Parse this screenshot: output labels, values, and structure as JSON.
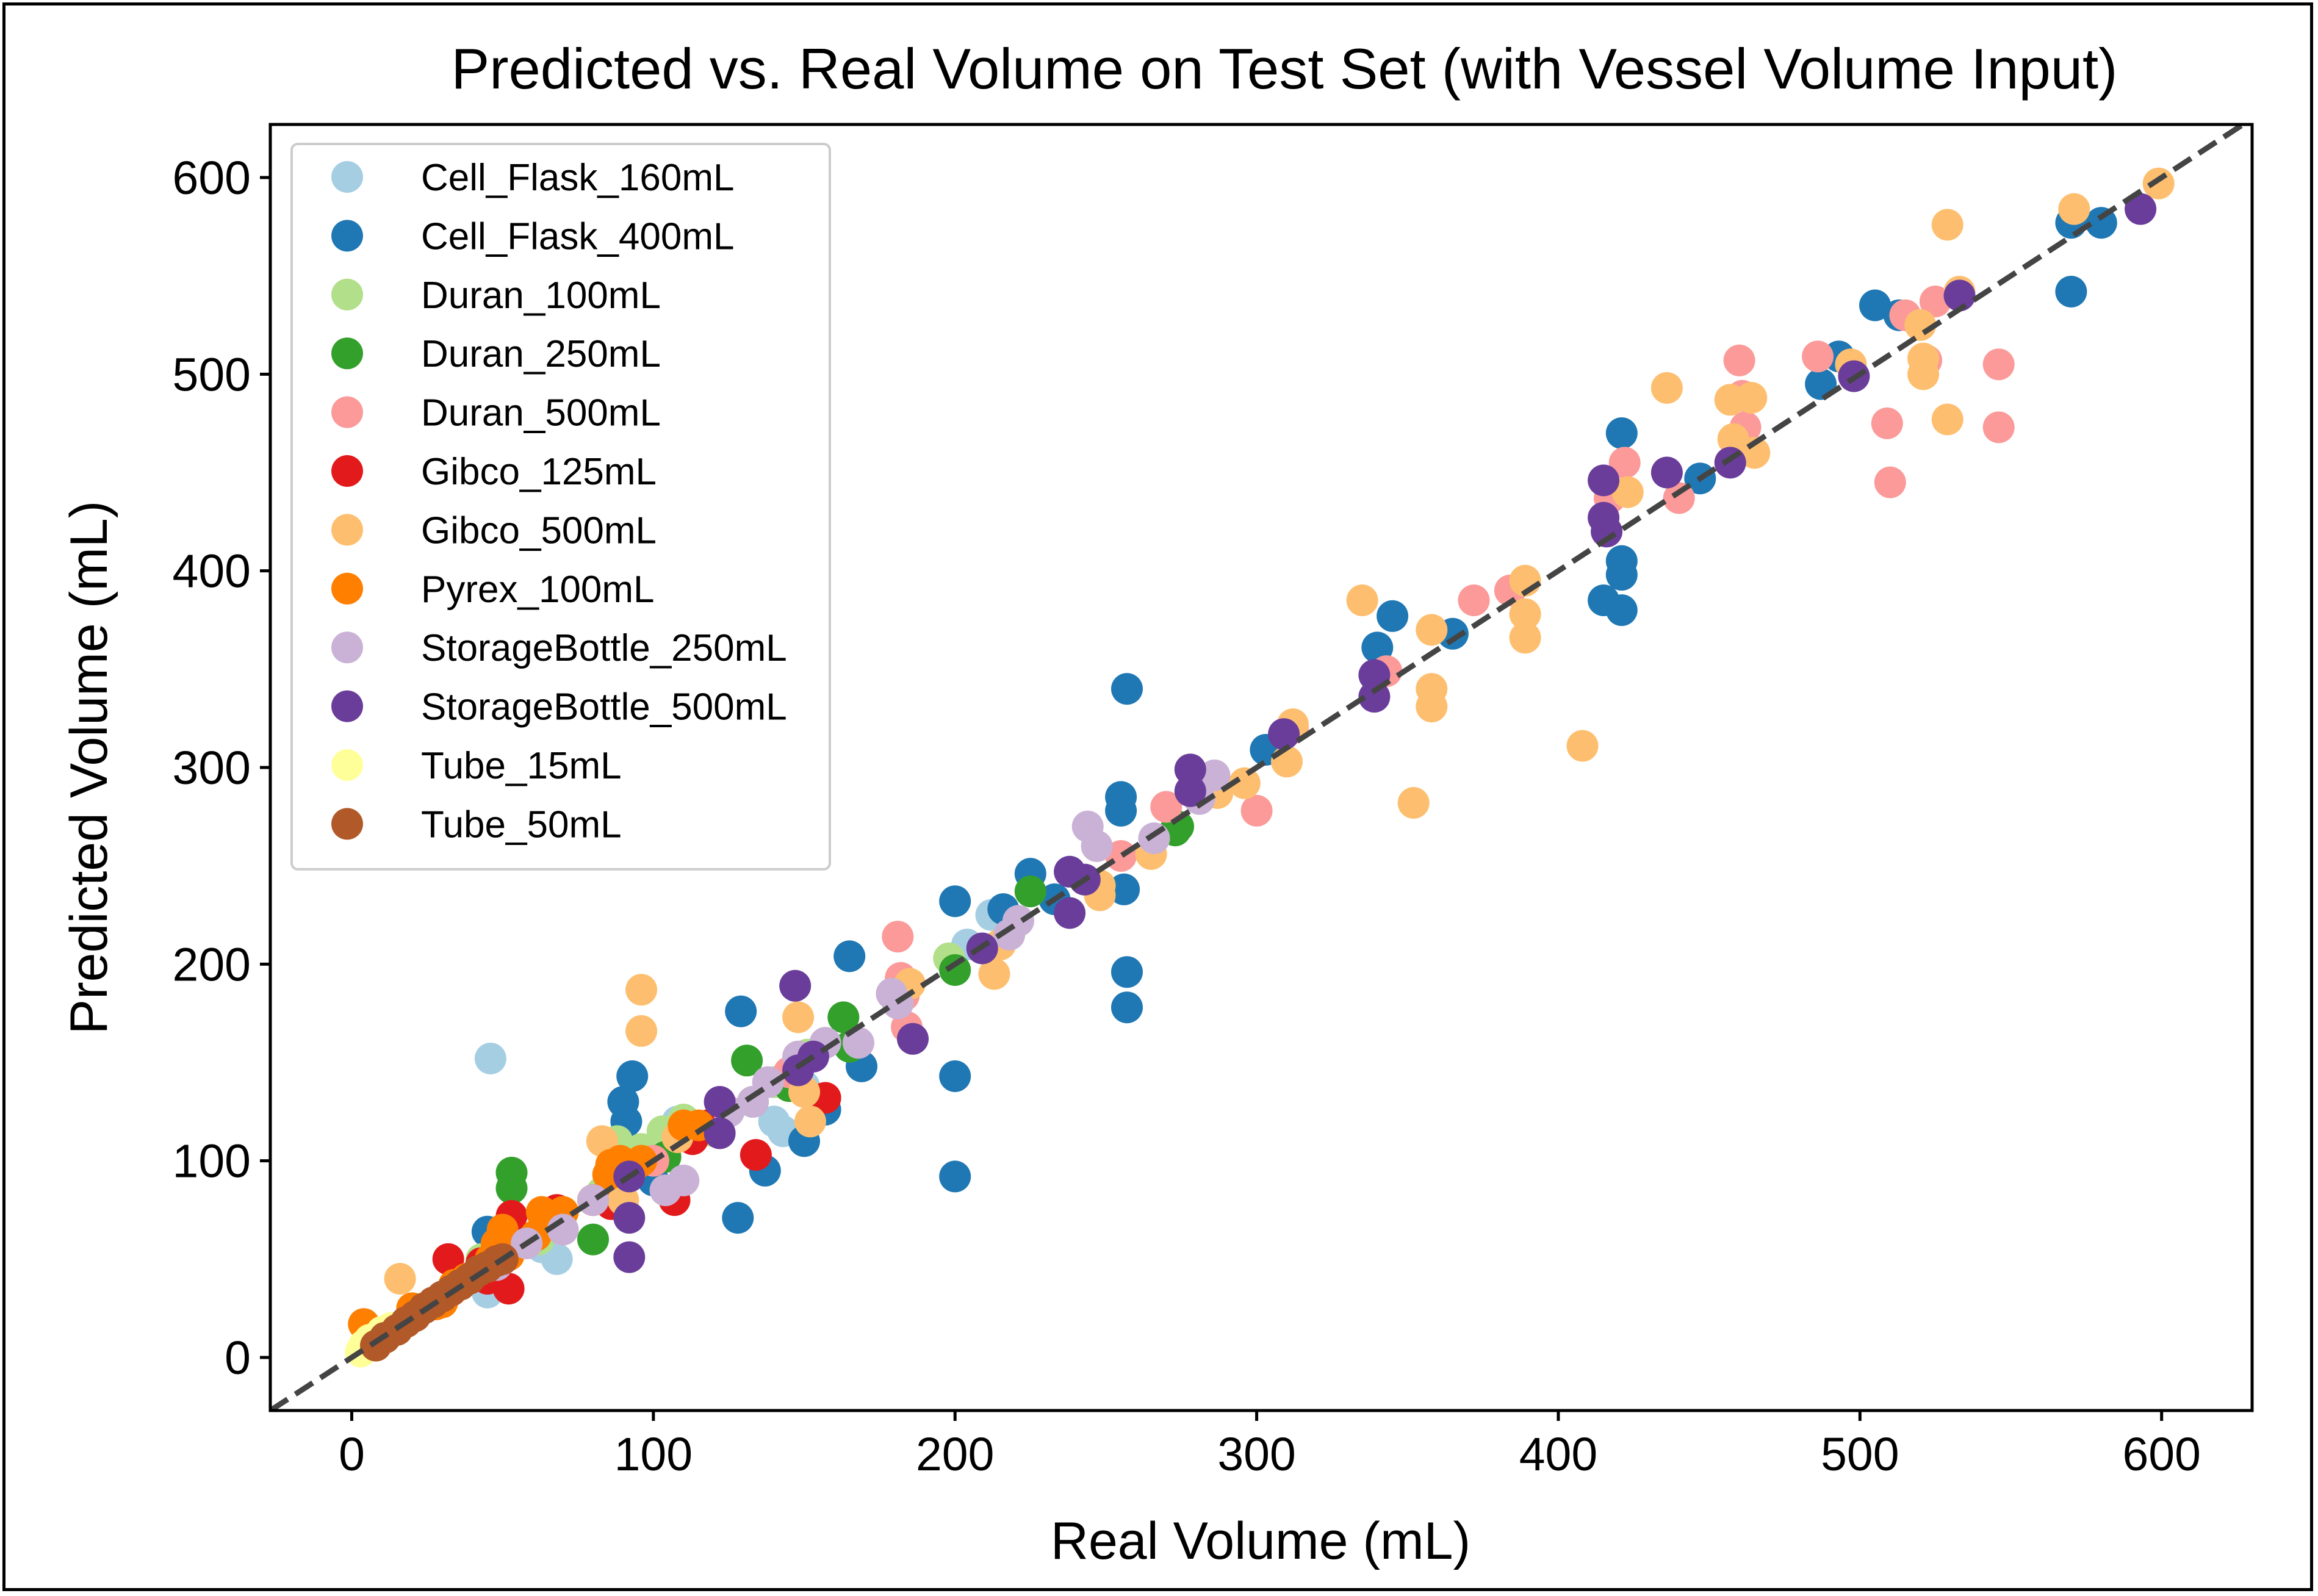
{
  "chart_data": {
    "type": "scatter",
    "title": "Predicted vs. Real Volume on Test Set (with Vessel Volume Input)",
    "xlabel": "Real Volume (mL)",
    "ylabel": "Predicted Volume (mL)",
    "xlim": [
      -27,
      630
    ],
    "ylim": [
      -27,
      627
    ],
    "xticks": [
      "0",
      "100",
      "200",
      "300",
      "400",
      "500",
      "600"
    ],
    "yticks": [
      "0",
      "100",
      "200",
      "300",
      "400",
      "500",
      "600"
    ],
    "grid": false,
    "legend_position": "top-left",
    "reference_line": {
      "x": [
        -27,
        630
      ],
      "y": [
        -27,
        630
      ],
      "style": "dashed",
      "color": "#444444"
    },
    "series": [
      {
        "name": "Cell_Flask_160mL",
        "color": "#a6cee3",
        "points": [
          [
            46,
            152
          ],
          [
            68,
            50
          ],
          [
            63,
            56
          ],
          [
            45,
            33
          ],
          [
            140,
            120
          ],
          [
            95,
            104
          ],
          [
            143,
            115
          ],
          [
            150,
            138
          ],
          [
            212,
            225
          ],
          [
            204,
            210
          ],
          [
            108,
            120
          ],
          [
            100,
            100
          ]
        ]
      },
      {
        "name": "Cell_Flask_400mL",
        "color": "#1f78b4",
        "points": [
          [
            45,
            64
          ],
          [
            50,
            56
          ],
          [
            90,
            130
          ],
          [
            93,
            143
          ],
          [
            91,
            120
          ],
          [
            100,
            90
          ],
          [
            129,
            176
          ],
          [
            128,
            71
          ],
          [
            137,
            95
          ],
          [
            150,
            110
          ],
          [
            157,
            126
          ],
          [
            165,
            204
          ],
          [
            169,
            148
          ],
          [
            200,
            232
          ],
          [
            200,
            143
          ],
          [
            200,
            92
          ],
          [
            216,
            228
          ],
          [
            225,
            246
          ],
          [
            233,
            233
          ],
          [
            255,
            285
          ],
          [
            255,
            278
          ],
          [
            257,
            340
          ],
          [
            257,
            196
          ],
          [
            257,
            178
          ],
          [
            303,
            309
          ],
          [
            340,
            361
          ],
          [
            345,
            377
          ],
          [
            365,
            368
          ],
          [
            415,
            385
          ],
          [
            421,
            470
          ],
          [
            421,
            405
          ],
          [
            421,
            398
          ],
          [
            421,
            380
          ],
          [
            447,
            447
          ],
          [
            487,
            495
          ],
          [
            493,
            509
          ],
          [
            505,
            535
          ],
          [
            513,
            530
          ],
          [
            570,
            577
          ],
          [
            570,
            542
          ],
          [
            580,
            577
          ],
          [
            256,
            238
          ]
        ]
      },
      {
        "name": "Duran_100mL",
        "color": "#b2df8a",
        "points": [
          [
            20,
            25
          ],
          [
            43,
            50
          ],
          [
            62,
            60
          ],
          [
            83,
            84
          ],
          [
            88,
            110
          ],
          [
            96,
            106
          ],
          [
            103,
            115
          ],
          [
            110,
            121
          ],
          [
            120,
            115
          ],
          [
            140,
            140
          ],
          [
            151,
            154
          ],
          [
            198,
            203
          ]
        ]
      },
      {
        "name": "Duran_250mL",
        "color": "#33a02c",
        "points": [
          [
            53,
            94
          ],
          [
            53,
            86
          ],
          [
            80,
            60
          ],
          [
            104,
            102
          ],
          [
            131,
            151
          ],
          [
            133,
            130
          ],
          [
            145,
            138
          ],
          [
            163,
            173
          ],
          [
            165,
            158
          ],
          [
            200,
            197
          ],
          [
            225,
            237
          ],
          [
            273,
            268
          ],
          [
            274,
            270
          ]
        ]
      },
      {
        "name": "Duran_500mL",
        "color": "#fb9a99",
        "points": [
          [
            84,
            80
          ],
          [
            100,
            100
          ],
          [
            113,
            113
          ],
          [
            145,
            145
          ],
          [
            181,
            214
          ],
          [
            182,
            193
          ],
          [
            183,
            184
          ],
          [
            184,
            168
          ],
          [
            255,
            255
          ],
          [
            300,
            278
          ],
          [
            312,
            320
          ],
          [
            343,
            349
          ],
          [
            372,
            385
          ],
          [
            384,
            390
          ],
          [
            417,
            437
          ],
          [
            422,
            455
          ],
          [
            440,
            437
          ],
          [
            460,
            507
          ],
          [
            461,
            489
          ],
          [
            462,
            473
          ],
          [
            486,
            509
          ],
          [
            509,
            475
          ],
          [
            510,
            445
          ],
          [
            515,
            530
          ],
          [
            522,
            507
          ],
          [
            525,
            537
          ],
          [
            546,
            505
          ],
          [
            546,
            473
          ],
          [
            270,
            280
          ]
        ]
      },
      {
        "name": "Gibco_125mL",
        "color": "#e31a1c",
        "points": [
          [
            32,
            50
          ],
          [
            43,
            48
          ],
          [
            45,
            40
          ],
          [
            52,
            35
          ],
          [
            53,
            72
          ],
          [
            68,
            75
          ],
          [
            80,
            80
          ],
          [
            107,
            80
          ],
          [
            113,
            111
          ],
          [
            118,
            118
          ],
          [
            134,
            103
          ],
          [
            157,
            132
          ],
          [
            86,
            78
          ]
        ]
      },
      {
        "name": "Gibco_500mL",
        "color": "#fdbf6f",
        "points": [
          [
            16,
            40
          ],
          [
            83,
            110
          ],
          [
            90,
            80
          ],
          [
            96,
            187
          ],
          [
            96,
            166
          ],
          [
            108,
            112
          ],
          [
            148,
            173
          ],
          [
            150,
            135
          ],
          [
            152,
            120
          ],
          [
            185,
            190
          ],
          [
            213,
            195
          ],
          [
            215,
            210
          ],
          [
            248,
            235
          ],
          [
            265,
            256
          ],
          [
            287,
            287
          ],
          [
            296,
            292
          ],
          [
            310,
            303
          ],
          [
            312,
            322
          ],
          [
            335,
            385
          ],
          [
            352,
            282
          ],
          [
            358,
            370
          ],
          [
            358,
            340
          ],
          [
            358,
            331
          ],
          [
            389,
            395
          ],
          [
            389,
            378
          ],
          [
            389,
            366
          ],
          [
            408,
            311
          ],
          [
            423,
            440
          ],
          [
            436,
            493
          ],
          [
            457,
            487
          ],
          [
            458,
            467
          ],
          [
            464,
            488
          ],
          [
            465,
            460
          ],
          [
            497,
            505
          ],
          [
            520,
            525
          ],
          [
            521,
            500
          ],
          [
            521,
            508
          ],
          [
            529,
            576
          ],
          [
            529,
            477
          ],
          [
            533,
            542
          ],
          [
            571,
            584
          ],
          [
            599,
            597
          ],
          [
            248,
            240
          ]
        ]
      },
      {
        "name": "Pyrex_100mL",
        "color": "#ff7f00",
        "points": [
          [
            4,
            17
          ],
          [
            20,
            25
          ],
          [
            28,
            27
          ],
          [
            34,
            37
          ],
          [
            38,
            40
          ],
          [
            46,
            50
          ],
          [
            50,
            65
          ],
          [
            52,
            52
          ],
          [
            61,
            62
          ],
          [
            63,
            74
          ],
          [
            70,
            74
          ],
          [
            80,
            80
          ],
          [
            85,
            93
          ],
          [
            86,
            98
          ],
          [
            89,
            100
          ],
          [
            93,
            96
          ],
          [
            96,
            100
          ],
          [
            110,
            118
          ],
          [
            115,
            118
          ],
          [
            48,
            58
          ],
          [
            30,
            28
          ]
        ]
      },
      {
        "name": "StorageBottle_250mL",
        "color": "#cab2d6",
        "points": [
          [
            48,
            47
          ],
          [
            58,
            58
          ],
          [
            70,
            65
          ],
          [
            80,
            80
          ],
          [
            104,
            85
          ],
          [
            110,
            90
          ],
          [
            125,
            125
          ],
          [
            133,
            130
          ],
          [
            138,
            140
          ],
          [
            148,
            153
          ],
          [
            157,
            160
          ],
          [
            168,
            160
          ],
          [
            179,
            185
          ],
          [
            181,
            180
          ],
          [
            218,
            215
          ],
          [
            221,
            222
          ],
          [
            244,
            270
          ],
          [
            247,
            260
          ],
          [
            266,
            264
          ],
          [
            286,
            296
          ],
          [
            281,
            284
          ]
        ]
      },
      {
        "name": "StorageBottle_500mL",
        "color": "#6a3d9a",
        "points": [
          [
            92,
            92
          ],
          [
            92,
            71
          ],
          [
            92,
            51
          ],
          [
            122,
            130
          ],
          [
            122,
            114
          ],
          [
            147,
            189
          ],
          [
            148,
            146
          ],
          [
            153,
            153
          ],
          [
            186,
            162
          ],
          [
            209,
            208
          ],
          [
            238,
            247
          ],
          [
            238,
            226
          ],
          [
            243,
            243
          ],
          [
            278,
            299
          ],
          [
            278,
            288
          ],
          [
            309,
            317
          ],
          [
            339,
            347
          ],
          [
            339,
            336
          ],
          [
            415,
            446
          ],
          [
            415,
            427
          ],
          [
            416,
            420
          ],
          [
            436,
            450
          ],
          [
            457,
            455
          ],
          [
            498,
            499
          ],
          [
            533,
            540
          ],
          [
            593,
            584
          ]
        ]
      },
      {
        "name": "Tube_15mL",
        "color": "#ffff99",
        "points": [
          [
            3,
            3
          ],
          [
            4,
            6
          ],
          [
            6,
            9
          ],
          [
            8,
            8
          ],
          [
            10,
            13
          ],
          [
            13,
            15
          ]
        ]
      },
      {
        "name": "Tube_50mL",
        "color": "#b15928",
        "points": [
          [
            8,
            6
          ],
          [
            11,
            10
          ],
          [
            15,
            14
          ],
          [
            18,
            18
          ],
          [
            21,
            21
          ],
          [
            24,
            25
          ],
          [
            27,
            28
          ],
          [
            30,
            31
          ],
          [
            33,
            34
          ],
          [
            36,
            37
          ],
          [
            39,
            40
          ],
          [
            42,
            44
          ],
          [
            45,
            46
          ],
          [
            48,
            49
          ],
          [
            50,
            50
          ]
        ]
      }
    ]
  }
}
